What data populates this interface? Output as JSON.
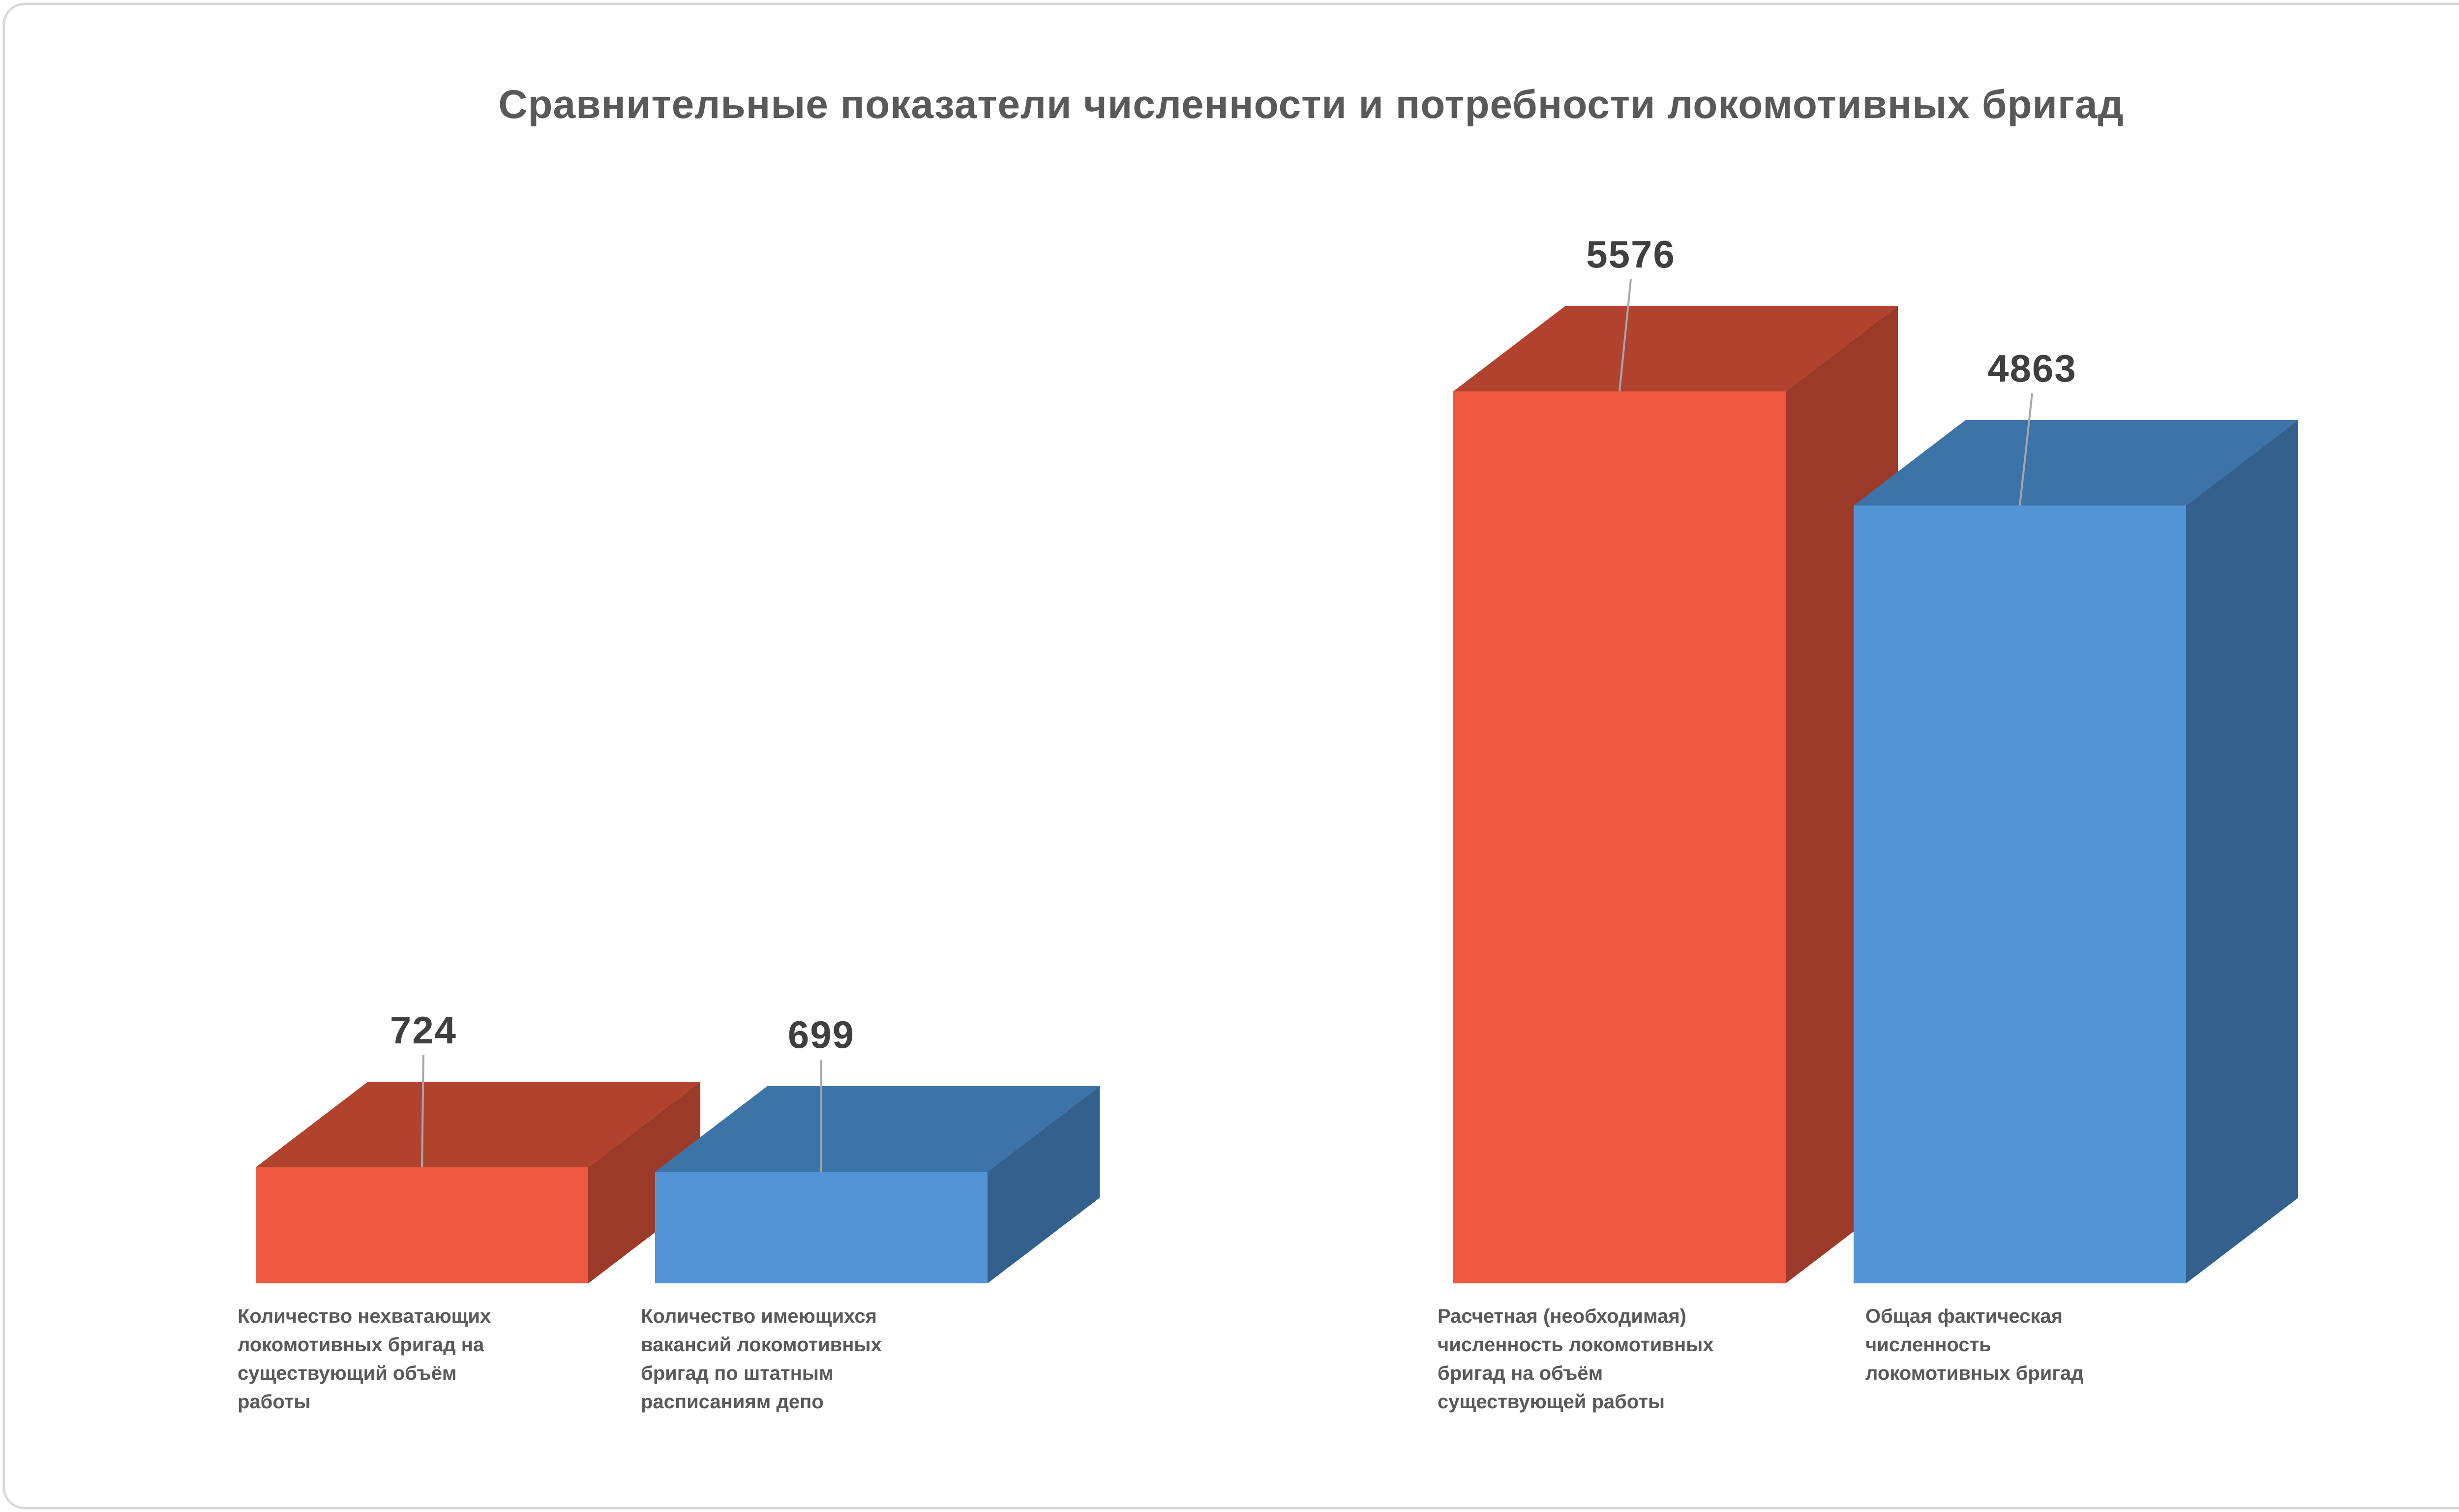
{
  "page": {
    "background": "#ffffff",
    "border_color": "#d9d9d9"
  },
  "chart_data": {
    "type": "bar",
    "projection": "3d-extruded-columns",
    "title": "Сравнительные показатели численности и потребности локомотивных бригад",
    "title_color": "#595959",
    "value_label_color": "#3f3f3f",
    "category_label_color": "#595959",
    "leader_line_color": "#a6a6a6",
    "legend": "none",
    "axes_visible": false,
    "grid": false,
    "ylim": [
      0,
      6000
    ],
    "xlabel": "",
    "ylabel": "",
    "categories": [
      "Количество нехватающих локомотивных бригад на существующий объём работы",
      "Количество имеющихся вакансий локомотивных бригад по штатным расписаниям депо",
      "Расчетная (необходимая) численность локомотивных бригад на объём существующей работы",
      "Общая фактическая численность локомотивных бригад"
    ],
    "values": [
      724,
      699,
      5576,
      4863
    ],
    "bars": [
      {
        "id": "shortage",
        "value": 724,
        "color": "red",
        "label_lines": [
          "Количество нехватающих",
          "локомотивных бригад на",
          "существующий объём",
          "работы"
        ]
      },
      {
        "id": "vacancies",
        "value": 699,
        "color": "blue",
        "label_lines": [
          "Количество имеющихся",
          "вакансий локомотивных",
          "бригад по штатным",
          "расписаниям депо"
        ]
      },
      {
        "id": "required",
        "value": 5576,
        "color": "red",
        "label_lines": [
          "Расчетная (необходимая)",
          "численность локомотивных",
          "бригад на объём",
          "существующей работы"
        ]
      },
      {
        "id": "actual",
        "value": 4863,
        "color": "blue",
        "label_lines": [
          "Общая фактическая",
          "численность",
          "локомотивных бригад"
        ]
      }
    ],
    "colors": {
      "red_front": "#ee5840",
      "red_top": "#b1432e",
      "red_side": "#9b3a28",
      "blue_front": "#5294d6",
      "blue_top": "#3c74a8",
      "blue_side": "#33608c"
    }
  }
}
